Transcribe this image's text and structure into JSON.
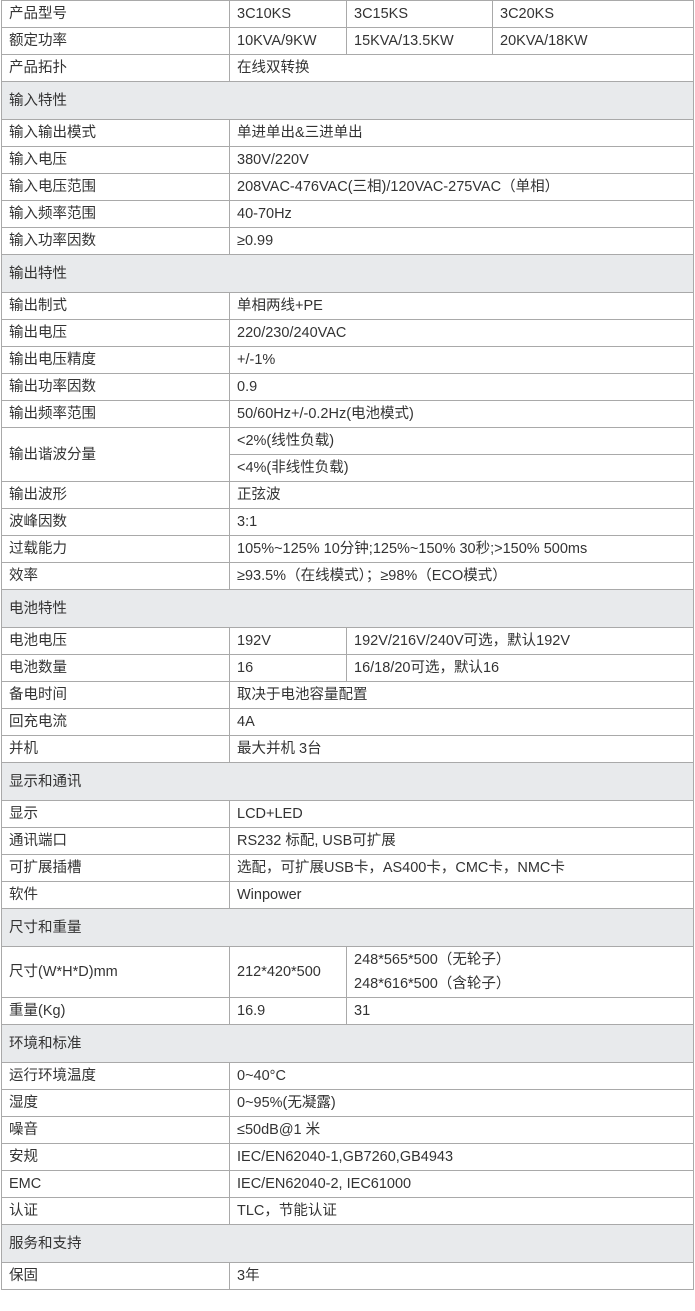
{
  "rows": [
    {
      "label": "产品型号",
      "cells": [
        {
          "text": "3C10KS"
        },
        {
          "text": "3C15KS"
        },
        {
          "text": "3C20KS"
        }
      ]
    },
    {
      "label": "额定功率",
      "cells": [
        {
          "text": "10KVA/9KW"
        },
        {
          "text": "15KVA/13.5KW"
        },
        {
          "text": "20KVA/18KW"
        }
      ]
    },
    {
      "label": "产品拓扑",
      "cells": [
        {
          "text": "在线双转换",
          "colspan": 3
        }
      ]
    },
    {
      "section": "输入特性"
    },
    {
      "label": "输入输出模式",
      "cells": [
        {
          "text": "单进单出&三进单出",
          "colspan": 3
        }
      ]
    },
    {
      "label": "输入电压",
      "cells": [
        {
          "text": "380V/220V",
          "colspan": 3
        }
      ]
    },
    {
      "label": "输入电压范围",
      "cells": [
        {
          "text": "208VAC-476VAC(三相)/120VAC-275VAC（单相）",
          "colspan": 3
        }
      ]
    },
    {
      "label": "输入频率范围",
      "cells": [
        {
          "text": "40-70Hz",
          "colspan": 3
        }
      ]
    },
    {
      "label": "输入功率因数",
      "cells": [
        {
          "text": "≥0.99",
          "colspan": 3
        }
      ]
    },
    {
      "section": "输出特性"
    },
    {
      "label": "输出制式",
      "cells": [
        {
          "text": "单相两线+PE",
          "colspan": 3
        }
      ]
    },
    {
      "label": "输出电压",
      "cells": [
        {
          "text": "220/230/240VAC",
          "colspan": 3
        }
      ]
    },
    {
      "label": "输出电压精度",
      "cells": [
        {
          "text": " +/-1%",
          "colspan": 3
        }
      ]
    },
    {
      "label": "输出功率因数",
      "cells": [
        {
          "text": "0.9",
          "colspan": 3
        }
      ]
    },
    {
      "label": "输出频率范围",
      "cells": [
        {
          "text": "50/60Hz+/-0.2Hz(电池模式)",
          "colspan": 3
        }
      ]
    },
    {
      "label": "输出谐波分量",
      "rowspan": 2,
      "cells": [
        {
          "text": "<2%(线性负载)",
          "colspan": 3
        }
      ]
    },
    {
      "cells": [
        {
          "text": "<4%(非线性负载)",
          "colspan": 3
        }
      ]
    },
    {
      "label": "输出波形",
      "cells": [
        {
          "text": "正弦波",
          "colspan": 3
        }
      ]
    },
    {
      "label": "波峰因数",
      "cells": [
        {
          "text": "3:1",
          "colspan": 3
        }
      ]
    },
    {
      "label": "过载能力",
      "cells": [
        {
          "text": "105%~125%  10分钟;125%~150%  30秒;>150% 500ms",
          "colspan": 3
        }
      ]
    },
    {
      "label": "效率",
      "cells": [
        {
          "text": "≥93.5%（在线模式）；≥98%（ECO模式）",
          "colspan": 3
        }
      ]
    },
    {
      "section": "电池特性"
    },
    {
      "label": "电池电压",
      "cells": [
        {
          "text": "192V"
        },
        {
          "text": "192V/216V/240V可选，默认192V",
          "colspan": 2
        }
      ]
    },
    {
      "label": "电池数量",
      "cells": [
        {
          "text": "16"
        },
        {
          "text": "16/18/20可选，默认16",
          "colspan": 2
        }
      ]
    },
    {
      "label": "备电时间",
      "cells": [
        {
          "text": "取决于电池容量配置",
          "colspan": 3
        }
      ]
    },
    {
      "label": "回充电流",
      "cells": [
        {
          "text": "4A",
          "colspan": 3
        }
      ]
    },
    {
      "label": "并机",
      "cells": [
        {
          "text": "最大并机 3台",
          "colspan": 3
        }
      ]
    },
    {
      "section": "显示和通讯"
    },
    {
      "label": "显示",
      "cells": [
        {
          "text": "LCD+LED",
          "colspan": 3
        }
      ]
    },
    {
      "label": "通讯端口",
      "cells": [
        {
          "text": "RS232 标配, USB可扩展",
          "colspan": 3
        }
      ]
    },
    {
      "label": "可扩展插槽",
      "cells": [
        {
          "text": "选配，可扩展USB卡，AS400卡，CMC卡，NMC卡",
          "colspan": 3
        }
      ]
    },
    {
      "label": "软件",
      "cells": [
        {
          "text": "Winpower",
          "colspan": 3
        }
      ]
    },
    {
      "section": "尺寸和重量"
    },
    {
      "label": "尺寸(W*H*D)mm",
      "multi": true,
      "cells": [
        {
          "text": "212*420*500"
        },
        {
          "lines": [
            "248*565*500（无轮子）",
            "248*616*500（含轮子）"
          ],
          "colspan": 2
        }
      ]
    },
    {
      "label": "重量(Kg)",
      "cells": [
        {
          "text": "16.9"
        },
        {
          "text": "31",
          "colspan": 2
        }
      ]
    },
    {
      "section": "环境和标准"
    },
    {
      "label": "运行环境温度",
      "cells": [
        {
          "text": "0~40°C",
          "colspan": 3
        }
      ]
    },
    {
      "label": "湿度",
      "cells": [
        {
          "text": "0~95%(无凝露)",
          "colspan": 3
        }
      ]
    },
    {
      "label": "噪音",
      "cells": [
        {
          "text": "≤50dB@1 米",
          "colspan": 3
        }
      ]
    },
    {
      "label": "安规",
      "cells": [
        {
          "text": "IEC/EN62040-1,GB7260,GB4943",
          "colspan": 3
        }
      ]
    },
    {
      "label": "EMC",
      "cells": [
        {
          "text": "IEC/EN62040-2, IEC61000",
          "colspan": 3
        }
      ]
    },
    {
      "label": "认证",
      "cells": [
        {
          "text": "TLC，节能认证",
          "colspan": 3
        }
      ]
    },
    {
      "section": "服务和支持"
    },
    {
      "label": "保固",
      "cells": [
        {
          "text": "3年",
          "colspan": 3
        }
      ]
    }
  ]
}
